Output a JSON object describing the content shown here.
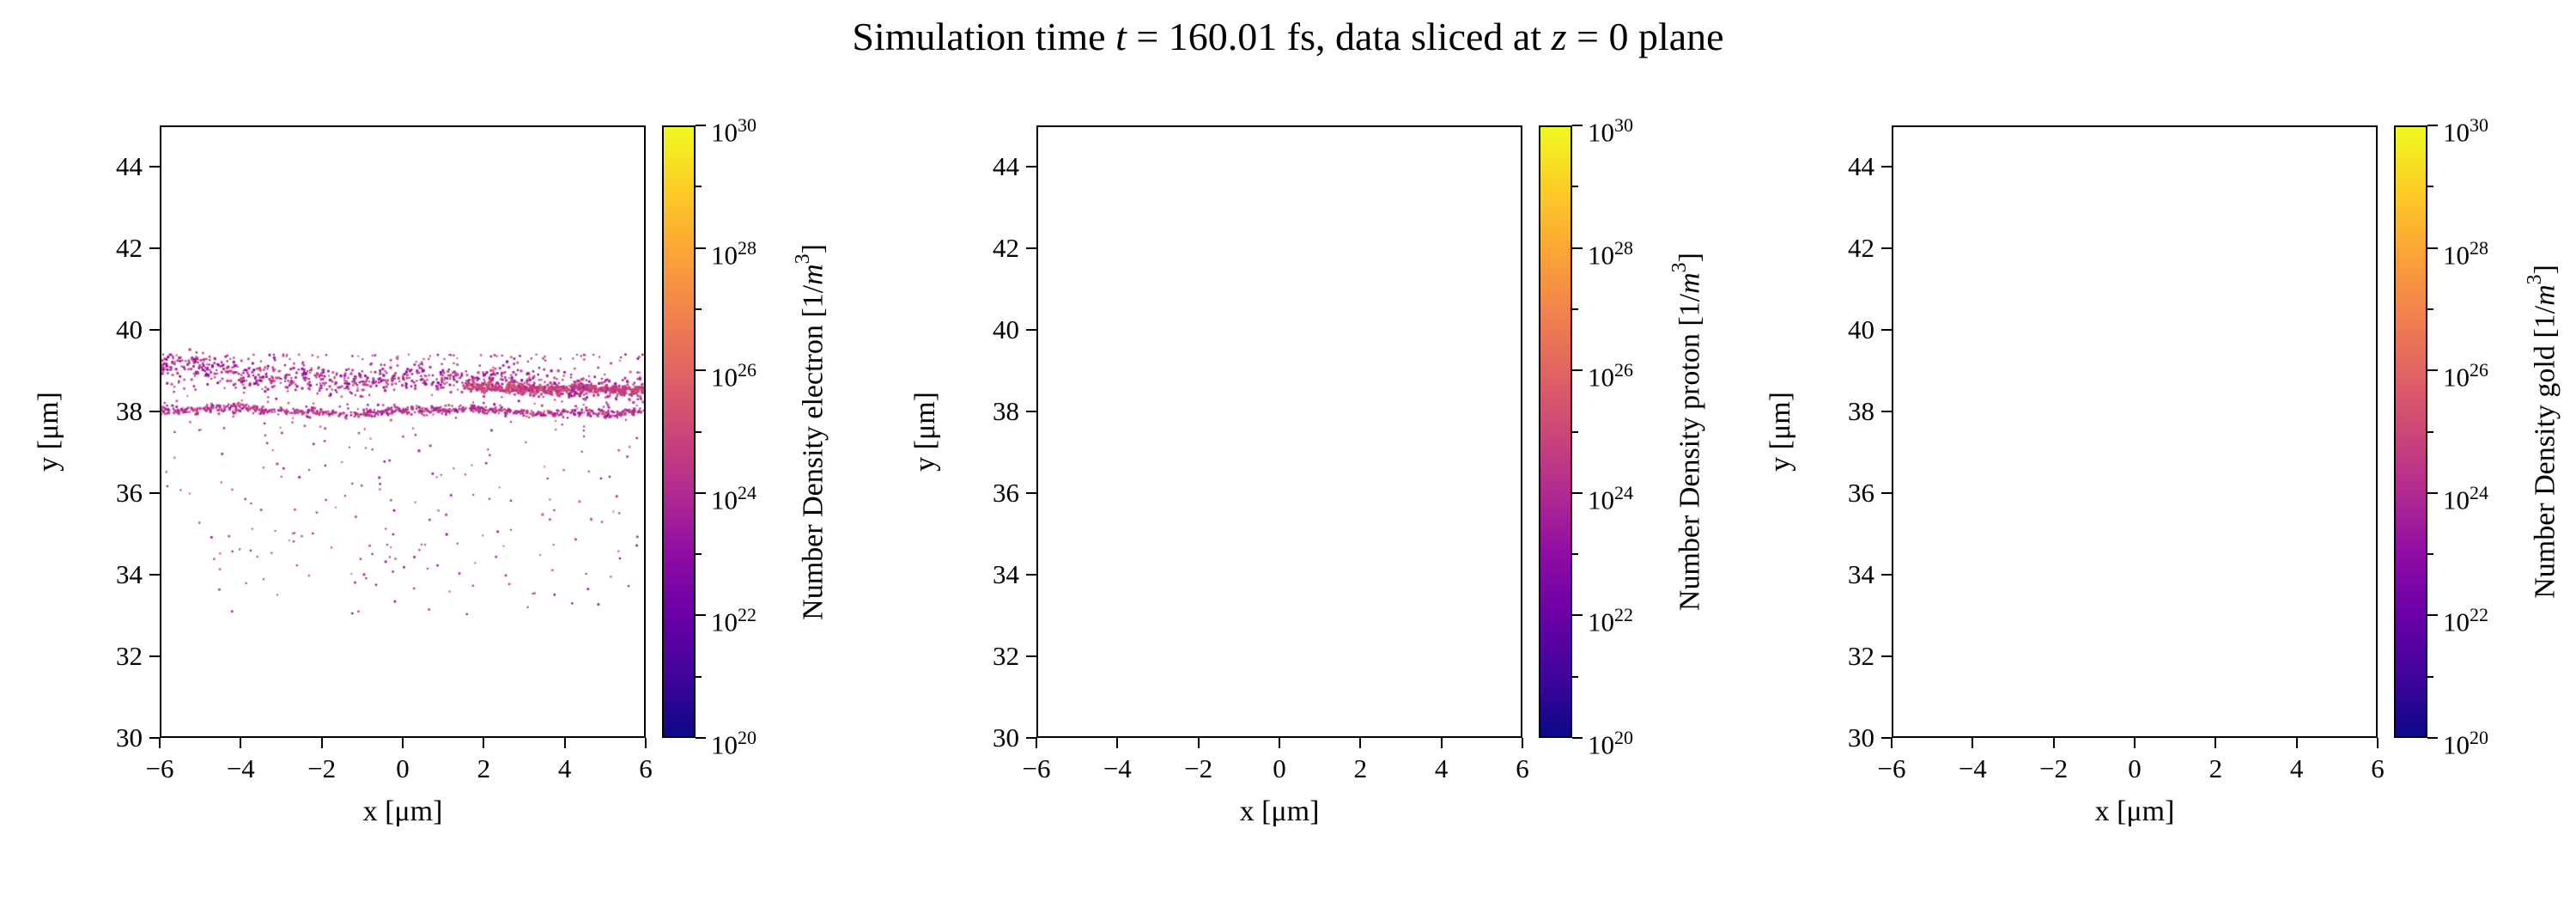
{
  "figure": {
    "title_plain": "Simulation time t = 160.01 fs, data sliced at z = 0 plane",
    "title_segments": [
      {
        "text": "Simulation time ",
        "italic": false
      },
      {
        "text": "t",
        "italic": true
      },
      {
        "text": " = 160.01 fs, data sliced at ",
        "italic": false
      },
      {
        "text": "z",
        "italic": true
      },
      {
        "text": " = 0 plane",
        "italic": false
      }
    ]
  },
  "chart_data": [
    {
      "type": "scatter",
      "species": "electron",
      "xlabel": "x [μm]",
      "ylabel": "y [μm]",
      "xlim": [
        -6,
        6
      ],
      "ylim": [
        30,
        45
      ],
      "xticks": [
        "−6",
        "−4",
        "−2",
        "0",
        "2",
        "4",
        "6"
      ],
      "xtick_values": [
        -6,
        -4,
        -2,
        0,
        2,
        4,
        6
      ],
      "yticks": [
        "30",
        "32",
        "34",
        "36",
        "38",
        "40",
        "42",
        "44"
      ],
      "ytick_values": [
        30,
        32,
        34,
        36,
        38,
        40,
        42,
        44
      ],
      "grid": false,
      "colorbar": {
        "label_parts": {
          "text_before": "Number Density electron [1/",
          "var": "m",
          "exp": "3",
          "text_after": "]"
        },
        "label_plain": "Number Density electron [1/m³]",
        "scale": "log",
        "base": "10",
        "tick_exponents": [
          20,
          22,
          24,
          26,
          28,
          30
        ],
        "minor_exponents": [
          21,
          23,
          25,
          27,
          29
        ],
        "clim": [
          "1e20",
          "1e30"
        ],
        "colormap": "plasma",
        "gradient": [
          "#0d0887",
          "#41049d",
          "#6a00a8",
          "#8f0da4",
          "#b12a90",
          "#cc4778",
          "#e16462",
          "#f2844b",
          "#fca636",
          "#fcce25",
          "#f0f921"
        ]
      },
      "points": {
        "seed": 7,
        "palette": [
          "#8f0da4",
          "#a11b9b",
          "#b12a90",
          "#c13a86",
          "#cc4778",
          "#d6556d"
        ],
        "groups": [
          {
            "kind": "band",
            "count": 750,
            "x_range": [
              -6,
              6
            ],
            "y_at_left": 38.03,
            "y_at_right": 37.98,
            "sigma": 0.05,
            "wiggle_amp": 0.05,
            "wiggle_freq": 0.55,
            "dot_min": 2.0,
            "dot_max": 3.0,
            "color_lo": 1,
            "color_hi": 4
          },
          {
            "kind": "band",
            "count": 820,
            "x_range": [
              -6,
              6
            ],
            "y_at_left": 39.0,
            "y_at_right": 38.55,
            "sigma": 0.17,
            "wiggle_amp": 0.09,
            "wiggle_freq": 0.45,
            "dot_min": 2.0,
            "dot_max": 3.2,
            "color_lo": 0,
            "color_hi": 4
          },
          {
            "kind": "band",
            "count": 450,
            "x_range": [
              1.5,
              6
            ],
            "y_at_left": 38.62,
            "y_at_right": 38.5,
            "sigma": 0.06,
            "wiggle_amp": 0.03,
            "wiggle_freq": 0.8,
            "dot_min": 2.4,
            "dot_max": 3.4,
            "color_lo": 2,
            "color_hi": 5
          },
          {
            "kind": "cloud",
            "count": 420,
            "x_range": [
              -6,
              6
            ],
            "y_top": 39.4,
            "y_bottom": 33.0,
            "power": 2.2,
            "dot_min": 1.8,
            "dot_max": 2.8,
            "color_lo": 0,
            "color_hi": 5
          }
        ]
      }
    },
    {
      "type": "scatter",
      "species": "proton",
      "xlabel": "x [μm]",
      "ylabel": "y [μm]",
      "xlim": [
        -6,
        6
      ],
      "ylim": [
        30,
        45
      ],
      "xticks": [
        "−6",
        "−4",
        "−2",
        "0",
        "2",
        "4",
        "6"
      ],
      "xtick_values": [
        -6,
        -4,
        -2,
        0,
        2,
        4,
        6
      ],
      "yticks": [
        "30",
        "32",
        "34",
        "36",
        "38",
        "40",
        "42",
        "44"
      ],
      "ytick_values": [
        30,
        32,
        34,
        36,
        38,
        40,
        42,
        44
      ],
      "grid": false,
      "colorbar": {
        "label_parts": {
          "text_before": "Number Density proton [1/",
          "var": "m",
          "exp": "3",
          "text_after": "]"
        },
        "label_plain": "Number Density proton [1/m³]",
        "scale": "log",
        "base": "10",
        "tick_exponents": [
          20,
          22,
          24,
          26,
          28,
          30
        ],
        "minor_exponents": [
          21,
          23,
          25,
          27,
          29
        ],
        "clim": [
          "1e20",
          "1e30"
        ],
        "colormap": "plasma",
        "gradient": [
          "#0d0887",
          "#41049d",
          "#6a00a8",
          "#8f0da4",
          "#b12a90",
          "#cc4778",
          "#e16462",
          "#f2844b",
          "#fca636",
          "#fcce25",
          "#f0f921"
        ]
      },
      "points": {
        "seed": 1,
        "palette": [],
        "groups": []
      }
    },
    {
      "type": "scatter",
      "species": "gold",
      "xlabel": "x [μm]",
      "ylabel": "y [μm]",
      "xlim": [
        -6,
        6
      ],
      "ylim": [
        30,
        45
      ],
      "xticks": [
        "−6",
        "−4",
        "−2",
        "0",
        "2",
        "4",
        "6"
      ],
      "xtick_values": [
        -6,
        -4,
        -2,
        0,
        2,
        4,
        6
      ],
      "yticks": [
        "30",
        "32",
        "34",
        "36",
        "38",
        "40",
        "42",
        "44"
      ],
      "ytick_values": [
        30,
        32,
        34,
        36,
        38,
        40,
        42,
        44
      ],
      "grid": false,
      "colorbar": {
        "label_parts": {
          "text_before": "Number Density gold [1/",
          "var": "m",
          "exp": "3",
          "text_after": "]"
        },
        "label_plain": "Number Density gold [1/m³]",
        "scale": "log",
        "base": "10",
        "tick_exponents": [
          20,
          22,
          24,
          26,
          28,
          30
        ],
        "minor_exponents": [
          21,
          23,
          25,
          27,
          29
        ],
        "clim": [
          "1e20",
          "1e30"
        ],
        "colormap": "plasma",
        "gradient": [
          "#0d0887",
          "#41049d",
          "#6a00a8",
          "#8f0da4",
          "#b12a90",
          "#cc4778",
          "#e16462",
          "#f2844b",
          "#fca636",
          "#fcce25",
          "#f0f921"
        ]
      },
      "points": {
        "seed": 2,
        "palette": [],
        "groups": []
      }
    }
  ]
}
